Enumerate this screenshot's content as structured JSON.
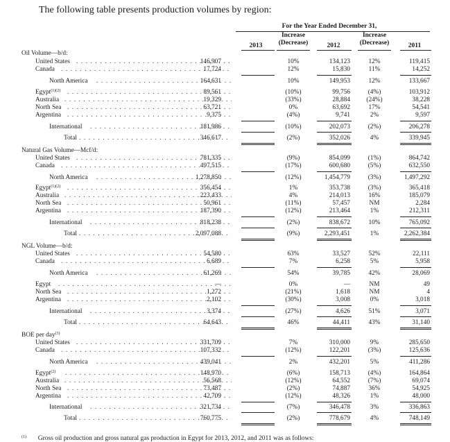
{
  "intro": "The following table presents production volumes by region:",
  "header": {
    "period": "For the Year Ended December 31,",
    "col_2013": "2013",
    "inc_label_1": "Increase",
    "dec_label_1": "(Decrease)",
    "col_2012": "2012",
    "inc_label_2": "Increase",
    "dec_label_2": "(Decrease)",
    "col_2011": "2011"
  },
  "sections": {
    "oil": {
      "title": "Oil Volume—b/d:",
      "us": {
        "label": "United States",
        "v2013": "146,907",
        "c1": "10%",
        "v2012": "134,123",
        "c2": "12%",
        "v2011": "119,415"
      },
      "ca": {
        "label": "Canada",
        "v2013": "17,724",
        "c1": "12%",
        "v2012": "15,830",
        "c2": "11%",
        "v2011": "14,252"
      },
      "na": {
        "label": "North America",
        "v2013": "164,631",
        "c1": "10%",
        "v2012": "149,953",
        "c2": "12%",
        "v2011": "133,667"
      },
      "eg": {
        "label": "Egypt",
        "sup": "(1)(2)",
        "v2013": "89,561",
        "c1": "(10%)",
        "v2012": "99,756",
        "c2": "(4%)",
        "v2011": "103,912"
      },
      "au": {
        "label": "Australia",
        "v2013": "19,329",
        "c1": "(33%)",
        "v2012": "28,884",
        "c2": "(24%)",
        "v2011": "38,228"
      },
      "ns": {
        "label": "North Sea",
        "v2013": "63,721",
        "c1": "0%",
        "v2012": "63,692",
        "c2": "17%",
        "v2011": "54,541"
      },
      "ar": {
        "label": "Argentina",
        "v2013": "9,375",
        "c1": "(4%)",
        "v2012": "9,741",
        "c2": "2%",
        "v2011": "9,597"
      },
      "intl": {
        "label": "International",
        "v2013": "181,986",
        "c1": "(10%)",
        "v2012": "202,073",
        "c2": "(2%)",
        "v2011": "206,278"
      },
      "total": {
        "label": "Total",
        "v2013": "346,617",
        "c1": "(2%)",
        "v2012": "352,026",
        "c2": "4%",
        "v2011": "339,945"
      }
    },
    "gas": {
      "title": "Natural Gas Volume—Mcf/d:",
      "us": {
        "label": "United States",
        "v2013": "781,335",
        "c1": "(9%)",
        "v2012": "854,099",
        "c2": "(1%)",
        "v2011": "864,742"
      },
      "ca": {
        "label": "Canada",
        "v2013": "497,515",
        "c1": "(17%)",
        "v2012": "600,680",
        "c2": "(5%)",
        "v2011": "632,550"
      },
      "na": {
        "label": "North America",
        "v2013": "1,278,850",
        "c1": "(12%)",
        "v2012": "1,454,779",
        "c2": "(3%)",
        "v2011": "1,497,292"
      },
      "eg": {
        "label": "Egypt",
        "sup": "(1)(2)",
        "v2013": "356,454",
        "c1": "1%",
        "v2012": "353,738",
        "c2": "(3%)",
        "v2011": "365,418"
      },
      "au": {
        "label": "Australia",
        "v2013": "223,433",
        "c1": "4%",
        "v2012": "214,013",
        "c2": "16%",
        "v2011": "185,079"
      },
      "ns": {
        "label": "North Sea",
        "v2013": "50,961",
        "c1": "(11%)",
        "v2012": "57,457",
        "c2": "NM",
        "v2011": "2,284"
      },
      "ar": {
        "label": "Argentina",
        "v2013": "187,390",
        "c1": "(12%)",
        "v2012": "213,464",
        "c2": "1%",
        "v2011": "212,311"
      },
      "intl": {
        "label": "International",
        "v2013": "818,238",
        "c1": "(2%)",
        "v2012": "838,672",
        "c2": "10%",
        "v2011": "765,092"
      },
      "total": {
        "label": "Total",
        "v2013": "2,097,088",
        "c1": "(9%)",
        "v2012": "2,293,451",
        "c2": "1%",
        "v2011": "2,262,384"
      }
    },
    "ngl": {
      "title": "NGL Volume—b/d:",
      "us": {
        "label": "United States",
        "v2013": "54,580",
        "c1": "63%",
        "v2012": "33,527",
        "c2": "52%",
        "v2011": "22,111"
      },
      "ca": {
        "label": "Canada",
        "v2013": "6,689",
        "c1": "7%",
        "v2012": "6,258",
        "c2": "5%",
        "v2011": "5,958"
      },
      "na": {
        "label": "North America",
        "v2013": "61,269",
        "c1": "54%",
        "v2012": "39,785",
        "c2": "42%",
        "v2011": "28,069"
      },
      "eg": {
        "label": "Egypt",
        "v2013": "—",
        "c1": "0%",
        "v2012": "—",
        "c2": "NM",
        "v2011": "49"
      },
      "ns": {
        "label": "North Sea",
        "v2013": "1,272",
        "c1": "(21%)",
        "v2012": "1,618",
        "c2": "NM",
        "v2011": "4"
      },
      "ar": {
        "label": "Argentina",
        "v2013": "2,102",
        "c1": "(30%)",
        "v2012": "3,008",
        "c2": "0%",
        "v2011": "3,018"
      },
      "intl": {
        "label": "International",
        "v2013": "3,374",
        "c1": "(27%)",
        "v2012": "4,626",
        "c2": "51%",
        "v2011": "3,071"
      },
      "total": {
        "label": "Total",
        "v2013": "64,643",
        "c1": "46%",
        "v2012": "44,411",
        "c2": "43%",
        "v2011": "31,140"
      }
    },
    "boe": {
      "title": "BOE per day",
      "title_sup": "(3)",
      "us": {
        "label": "United States",
        "v2013": "331,709",
        "c1": "7%",
        "v2012": "310,000",
        "c2": "9%",
        "v2011": "285,650"
      },
      "ca": {
        "label": "Canada",
        "v2013": "107,332",
        "c1": "(12%)",
        "v2012": "122,201",
        "c2": "(3%)",
        "v2011": "125,636"
      },
      "na": {
        "label": "North America",
        "v2013": "439,041",
        "c1": "2%",
        "v2012": "432,201",
        "c2": "5%",
        "v2011": "411,286"
      },
      "eg": {
        "label": "Egypt",
        "sup": "(2)",
        "v2013": "148,970",
        "c1": "(6%)",
        "v2012": "158,713",
        "c2": "(4%)",
        "v2011": "164,864"
      },
      "au": {
        "label": "Australia",
        "v2013": "56,568",
        "c1": "(12%)",
        "v2012": "64,552",
        "c2": "(7%)",
        "v2011": "69,074"
      },
      "ns": {
        "label": "North Sea",
        "v2013": "73,487",
        "c1": "(2%)",
        "v2012": "74,887",
        "c2": "36%",
        "v2011": "54,925"
      },
      "ar": {
        "label": "Argentina",
        "v2013": "42,709",
        "c1": "(12%)",
        "v2012": "48,326",
        "c2": "1%",
        "v2011": "48,000"
      },
      "intl": {
        "label": "International",
        "v2013": "321,734",
        "c1": "(7%)",
        "v2012": "346,478",
        "c2": "3%",
        "v2011": "336,863"
      },
      "total": {
        "label": "Total",
        "v2013": "760,775",
        "c1": "(2%)",
        "v2012": "778,679",
        "c2": "4%",
        "v2011": "748,149"
      }
    }
  },
  "footnote": {
    "marker": "(1)",
    "text": "Gross oil production and gross natural gas production in Egypt for 2013, 2012, and 2011 was as follows:"
  }
}
